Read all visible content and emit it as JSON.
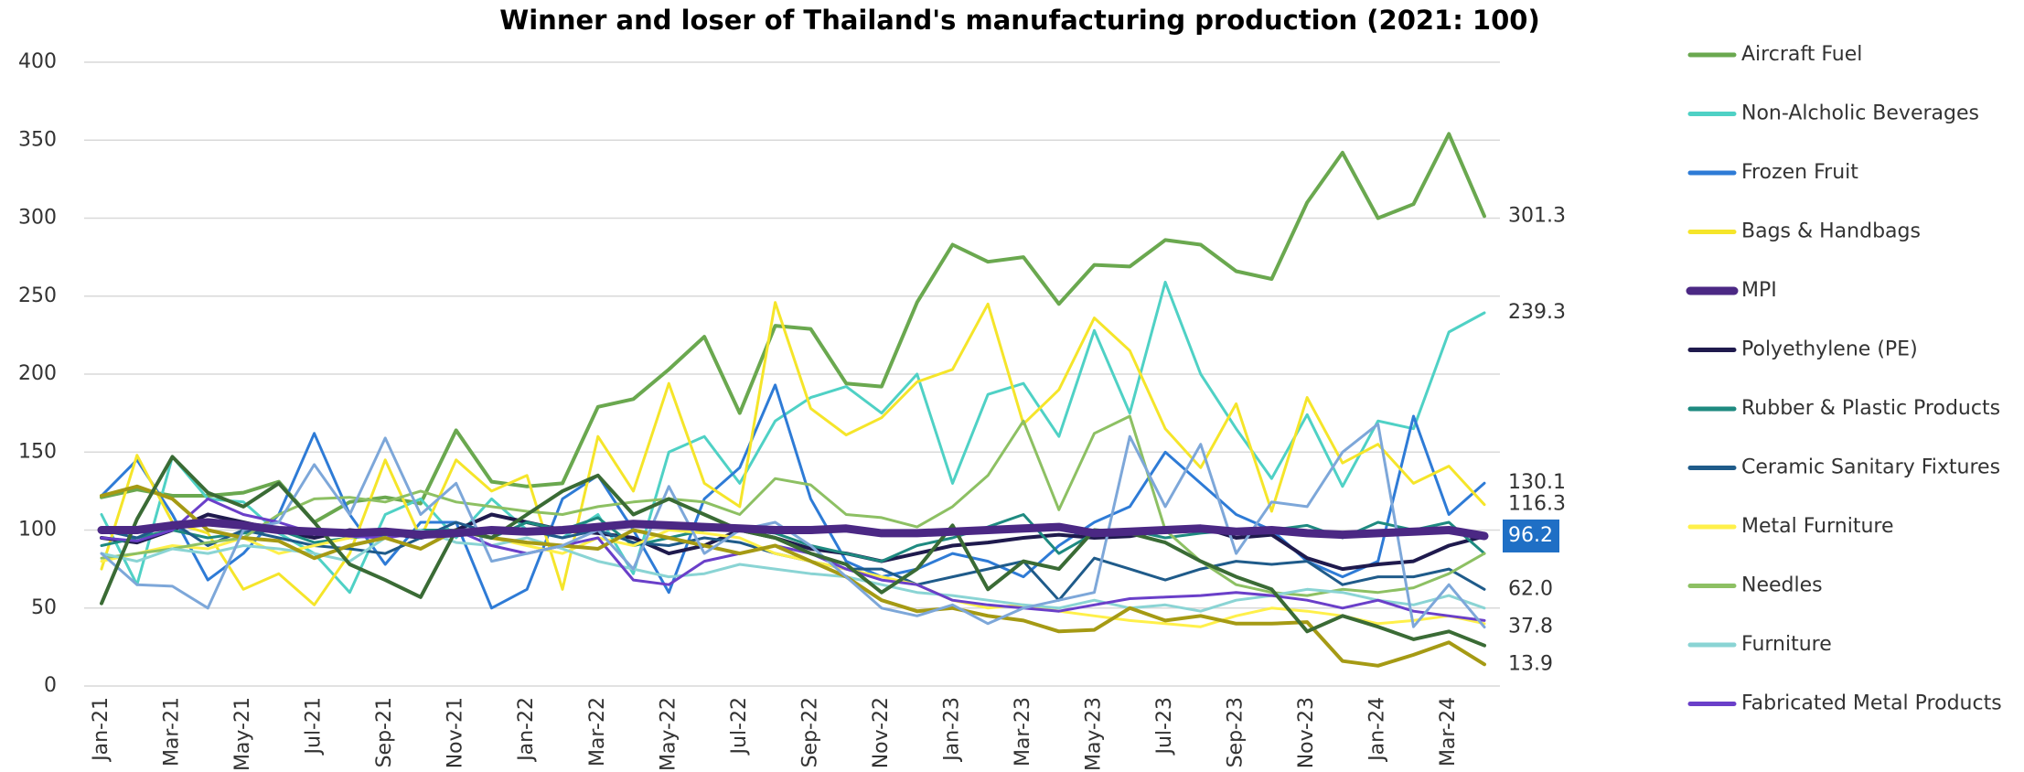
{
  "chart_data": {
    "type": "line",
    "title": "Winner and loser of Thailand's manufacturing production (2021: 100)",
    "categories": [
      "Jan-21",
      null,
      "Mar-21",
      null,
      "May-21",
      null,
      "Jul-21",
      null,
      "Sep-21",
      null,
      "Nov-21",
      null,
      "Jan-22",
      null,
      "Mar-22",
      null,
      "May-22",
      null,
      "Jul-22",
      null,
      "Sep-22",
      null,
      "Nov-22",
      null,
      "Jan-23",
      null,
      "Mar-23",
      null,
      "May-23",
      null,
      "Jul-23",
      null,
      "Sep-23",
      null,
      "Nov-23",
      null,
      "Jan-24",
      null,
      "Mar-24",
      null
    ],
    "ylim": [
      0,
      400
    ],
    "yticks": [
      0,
      50,
      100,
      150,
      200,
      250,
      300,
      350,
      400
    ],
    "grid": true,
    "legend": "right",
    "series": [
      {
        "name": "Aircraft Fuel",
        "color": "#6aa84f",
        "width": 4,
        "values": [
          121,
          126,
          122,
          122,
          124,
          131,
          105,
          118,
          121,
          117,
          164,
          131,
          128,
          130,
          179,
          184,
          203,
          224,
          175,
          231,
          229,
          194,
          192,
          246,
          283,
          272,
          275,
          245,
          270,
          269,
          286,
          283,
          266,
          261,
          310,
          342,
          300,
          309,
          354,
          301.3
        ],
        "value_labels": [
          null,
          null,
          null,
          null,
          null,
          null,
          null,
          null,
          null,
          null,
          null,
          null,
          null,
          null,
          null,
          null,
          null,
          null,
          null,
          null,
          null,
          null,
          null,
          null,
          null,
          null,
          null,
          null,
          null,
          null,
          null,
          null,
          null,
          null,
          null,
          null,
          null,
          null,
          null,
          "301.3"
        ]
      },
      {
        "name": "Non-Alcholic Beverages",
        "color": "#4fd1c5",
        "width": 3,
        "values": [
          110,
          65,
          147,
          120,
          118,
          98,
          85,
          60,
          110,
          120,
          95,
          120,
          100,
          95,
          110,
          72,
          150,
          160,
          130,
          170,
          185,
          192,
          175,
          200,
          130,
          187,
          194,
          160,
          228,
          175,
          259,
          200,
          165,
          133,
          174,
          128,
          170,
          165,
          227,
          239.3
        ],
        "value_labels": [
          null,
          null,
          null,
          null,
          null,
          null,
          null,
          null,
          null,
          null,
          null,
          null,
          null,
          null,
          null,
          null,
          null,
          null,
          null,
          null,
          null,
          null,
          null,
          null,
          null,
          null,
          null,
          null,
          null,
          null,
          null,
          null,
          null,
          null,
          null,
          null,
          null,
          null,
          null,
          "239.3"
        ]
      },
      {
        "name": "Frozen Fruit",
        "color": "#2e7bd6",
        "width": 3,
        "values": [
          122,
          145,
          110,
          68,
          85,
          110,
          162,
          110,
          78,
          105,
          105,
          50,
          62,
          120,
          135,
          100,
          60,
          120,
          140,
          193,
          120,
          80,
          70,
          75,
          85,
          80,
          70,
          90,
          105,
          115,
          150,
          130,
          110,
          100,
          80,
          70,
          80,
          173,
          110,
          130.1
        ],
        "value_labels": [
          null,
          null,
          null,
          null,
          null,
          null,
          null,
          null,
          null,
          null,
          null,
          null,
          null,
          null,
          null,
          null,
          null,
          null,
          null,
          null,
          null,
          null,
          null,
          null,
          null,
          null,
          null,
          null,
          null,
          null,
          null,
          null,
          null,
          null,
          null,
          null,
          null,
          null,
          null,
          "130.1"
        ]
      },
      {
        "name": "Bags & Handbags",
        "color": "#f5e52a",
        "width": 3,
        "values": [
          75,
          148,
          105,
          98,
          62,
          72,
          52,
          85,
          145,
          95,
          145,
          125,
          135,
          62,
          160,
          125,
          194,
          130,
          115,
          246,
          178,
          161,
          172,
          195,
          203,
          245,
          168,
          190,
          236,
          215,
          165,
          140,
          181,
          112,
          185,
          143,
          155,
          130,
          141,
          116.3
        ],
        "value_labels": [
          null,
          null,
          null,
          null,
          null,
          null,
          null,
          null,
          null,
          null,
          null,
          null,
          null,
          null,
          null,
          null,
          null,
          null,
          null,
          null,
          null,
          null,
          null,
          null,
          null,
          null,
          null,
          null,
          null,
          null,
          null,
          null,
          null,
          null,
          null,
          null,
          null,
          null,
          null,
          "116.3"
        ]
      },
      {
        "name": "MPI",
        "color": "#4b2884",
        "width": 9,
        "label_style": "box",
        "values": [
          100,
          100,
          103,
          105,
          103,
          100,
          99,
          98,
          99,
          97,
          98,
          100,
          99,
          100,
          102,
          104,
          103,
          102,
          101,
          100,
          100,
          101,
          98,
          98,
          99,
          100,
          101,
          102,
          98,
          99,
          100,
          101,
          99,
          100,
          98,
          97,
          98,
          99,
          100,
          96.2
        ],
        "value_labels": [
          null,
          null,
          null,
          null,
          null,
          null,
          null,
          null,
          null,
          null,
          null,
          null,
          null,
          null,
          null,
          null,
          null,
          null,
          null,
          null,
          null,
          null,
          null,
          null,
          null,
          null,
          null,
          null,
          null,
          null,
          null,
          null,
          null,
          null,
          null,
          null,
          null,
          null,
          null,
          "96.2"
        ]
      },
      {
        "name": "Polyethylene (PE)",
        "color": "#1f1a4d",
        "width": 4,
        "values": [
          95,
          92,
          100,
          110,
          105,
          100,
          95,
          100,
          98,
          95,
          100,
          110,
          105,
          100,
          98,
          95,
          85,
          90,
          100,
          95,
          88,
          85,
          80,
          85,
          90,
          92,
          95,
          97,
          95,
          96,
          100,
          102,
          95,
          97,
          82,
          75,
          78,
          80,
          90,
          96
        ]
      },
      {
        "name": "Rubber & Plastic Products",
        "color": "#1e8a80",
        "width": 3,
        "values": [
          90,
          95,
          100,
          95,
          98,
          100,
          92,
          95,
          97,
          100,
          100,
          95,
          105,
          100,
          108,
          90,
          95,
          100,
          100,
          98,
          90,
          85,
          80,
          90,
          95,
          102,
          110,
          85,
          98,
          100,
          95,
          98,
          100,
          100,
          103,
          95,
          105,
          100,
          105,
          85
        ]
      },
      {
        "name": "Ceramic Sanitary Fixtures",
        "color": "#1f5b8a",
        "width": 3,
        "values": [
          100,
          95,
          105,
          90,
          100,
          95,
          90,
          88,
          85,
          95,
          105,
          98,
          100,
          95,
          100,
          92,
          90,
          95,
          92,
          85,
          80,
          75,
          75,
          65,
          70,
          75,
          80,
          55,
          82,
          75,
          68,
          75,
          80,
          78,
          80,
          65,
          70,
          70,
          75,
          62.0
        ],
        "value_labels": [
          null,
          null,
          null,
          null,
          null,
          null,
          null,
          null,
          null,
          null,
          null,
          null,
          null,
          null,
          null,
          null,
          null,
          null,
          null,
          null,
          null,
          null,
          null,
          null,
          null,
          null,
          null,
          null,
          null,
          null,
          null,
          null,
          null,
          null,
          null,
          null,
          null,
          null,
          null,
          "62.0"
        ]
      },
      {
        "name": "Metal Furniture",
        "color": "#fff04a",
        "width": 3,
        "values": [
          80,
          85,
          90,
          88,
          95,
          85,
          90,
          95,
          100,
          98,
          100,
          95,
          90,
          85,
          95,
          90,
          100,
          98,
          95,
          85,
          80,
          75,
          70,
          65,
          55,
          50,
          52,
          48,
          45,
          42,
          40,
          38,
          45,
          50,
          48,
          45,
          40,
          42,
          45,
          40
        ]
      },
      {
        "name": "Needles",
        "color": "#8dc063",
        "width": 3,
        "values": [
          82,
          85,
          88,
          92,
          95,
          110,
          120,
          121,
          118,
          125,
          118,
          115,
          112,
          110,
          115,
          118,
          120,
          118,
          110,
          133,
          129,
          110,
          108,
          102,
          115,
          135,
          170,
          113,
          162,
          173,
          100,
          80,
          65,
          60,
          58,
          62,
          60,
          63,
          72,
          85
        ]
      },
      {
        "name": "Furniture",
        "color": "#8ad4d4",
        "width": 3,
        "values": [
          85,
          80,
          88,
          85,
          90,
          88,
          85,
          80,
          95,
          100,
          92,
          90,
          95,
          88,
          80,
          75,
          70,
          72,
          78,
          75,
          72,
          70,
          65,
          60,
          58,
          55,
          52,
          50,
          55,
          50,
          52,
          48,
          55,
          58,
          62,
          60,
          55,
          52,
          58,
          50
        ]
      },
      {
        "name": "Fabricated Metal Products",
        "color": "#6a3fc9",
        "width": 3,
        "values": [
          95,
          93,
          100,
          120,
          110,
          105,
          98,
          96,
          95,
          98,
          100,
          90,
          85,
          90,
          95,
          68,
          65,
          80,
          85,
          90,
          85,
          75,
          68,
          65,
          55,
          52,
          50,
          48,
          52,
          56,
          57,
          58,
          60,
          58,
          55,
          50,
          55,
          48,
          45,
          42
        ]
      },
      {
        "color": "#a59a14",
        "width": 4,
        "values": [
          122,
          128,
          120,
          100,
          95,
          93,
          82,
          90,
          95,
          88,
          100,
          95,
          92,
          90,
          88,
          100,
          95,
          90,
          85,
          90,
          80,
          70,
          55,
          48,
          50,
          45,
          42,
          35,
          36,
          50,
          42,
          45,
          40,
          40,
          41,
          16,
          13,
          20,
          28,
          13.9
        ],
        "value_labels": [
          null,
          null,
          null,
          null,
          null,
          null,
          null,
          null,
          null,
          null,
          null,
          null,
          null,
          null,
          null,
          null,
          null,
          null,
          null,
          null,
          null,
          null,
          null,
          null,
          null,
          null,
          null,
          null,
          null,
          null,
          null,
          null,
          null,
          null,
          null,
          null,
          null,
          null,
          null,
          "13.9"
        ]
      },
      {
        "color": "#7da7d9",
        "width": 3,
        "values": [
          85,
          65,
          64,
          50,
          100,
          105,
          142,
          110,
          159,
          110,
          130,
          80,
          85,
          90,
          100,
          75,
          128,
          85,
          100,
          105,
          90,
          70,
          50,
          45,
          52,
          40,
          50,
          55,
          60,
          160,
          115,
          155,
          85,
          118,
          115,
          150,
          168,
          38,
          65,
          37.8
        ],
        "value_labels": [
          null,
          null,
          null,
          null,
          null,
          null,
          null,
          null,
          null,
          null,
          null,
          null,
          null,
          null,
          null,
          null,
          null,
          null,
          null,
          null,
          null,
          null,
          null,
          null,
          null,
          null,
          null,
          null,
          null,
          null,
          null,
          null,
          null,
          null,
          null,
          null,
          null,
          null,
          null,
          "37.8"
        ]
      },
      {
        "color": "#3a6b35",
        "width": 4,
        "values": [
          53,
          107,
          147,
          124,
          115,
          130,
          105,
          78,
          68,
          57,
          100,
          95,
          110,
          125,
          135,
          110,
          120,
          110,
          100,
          95,
          85,
          78,
          60,
          75,
          103,
          62,
          80,
          75,
          100,
          98,
          92,
          80,
          70,
          62,
          35,
          45,
          38,
          30,
          35,
          26
        ]
      }
    ]
  }
}
